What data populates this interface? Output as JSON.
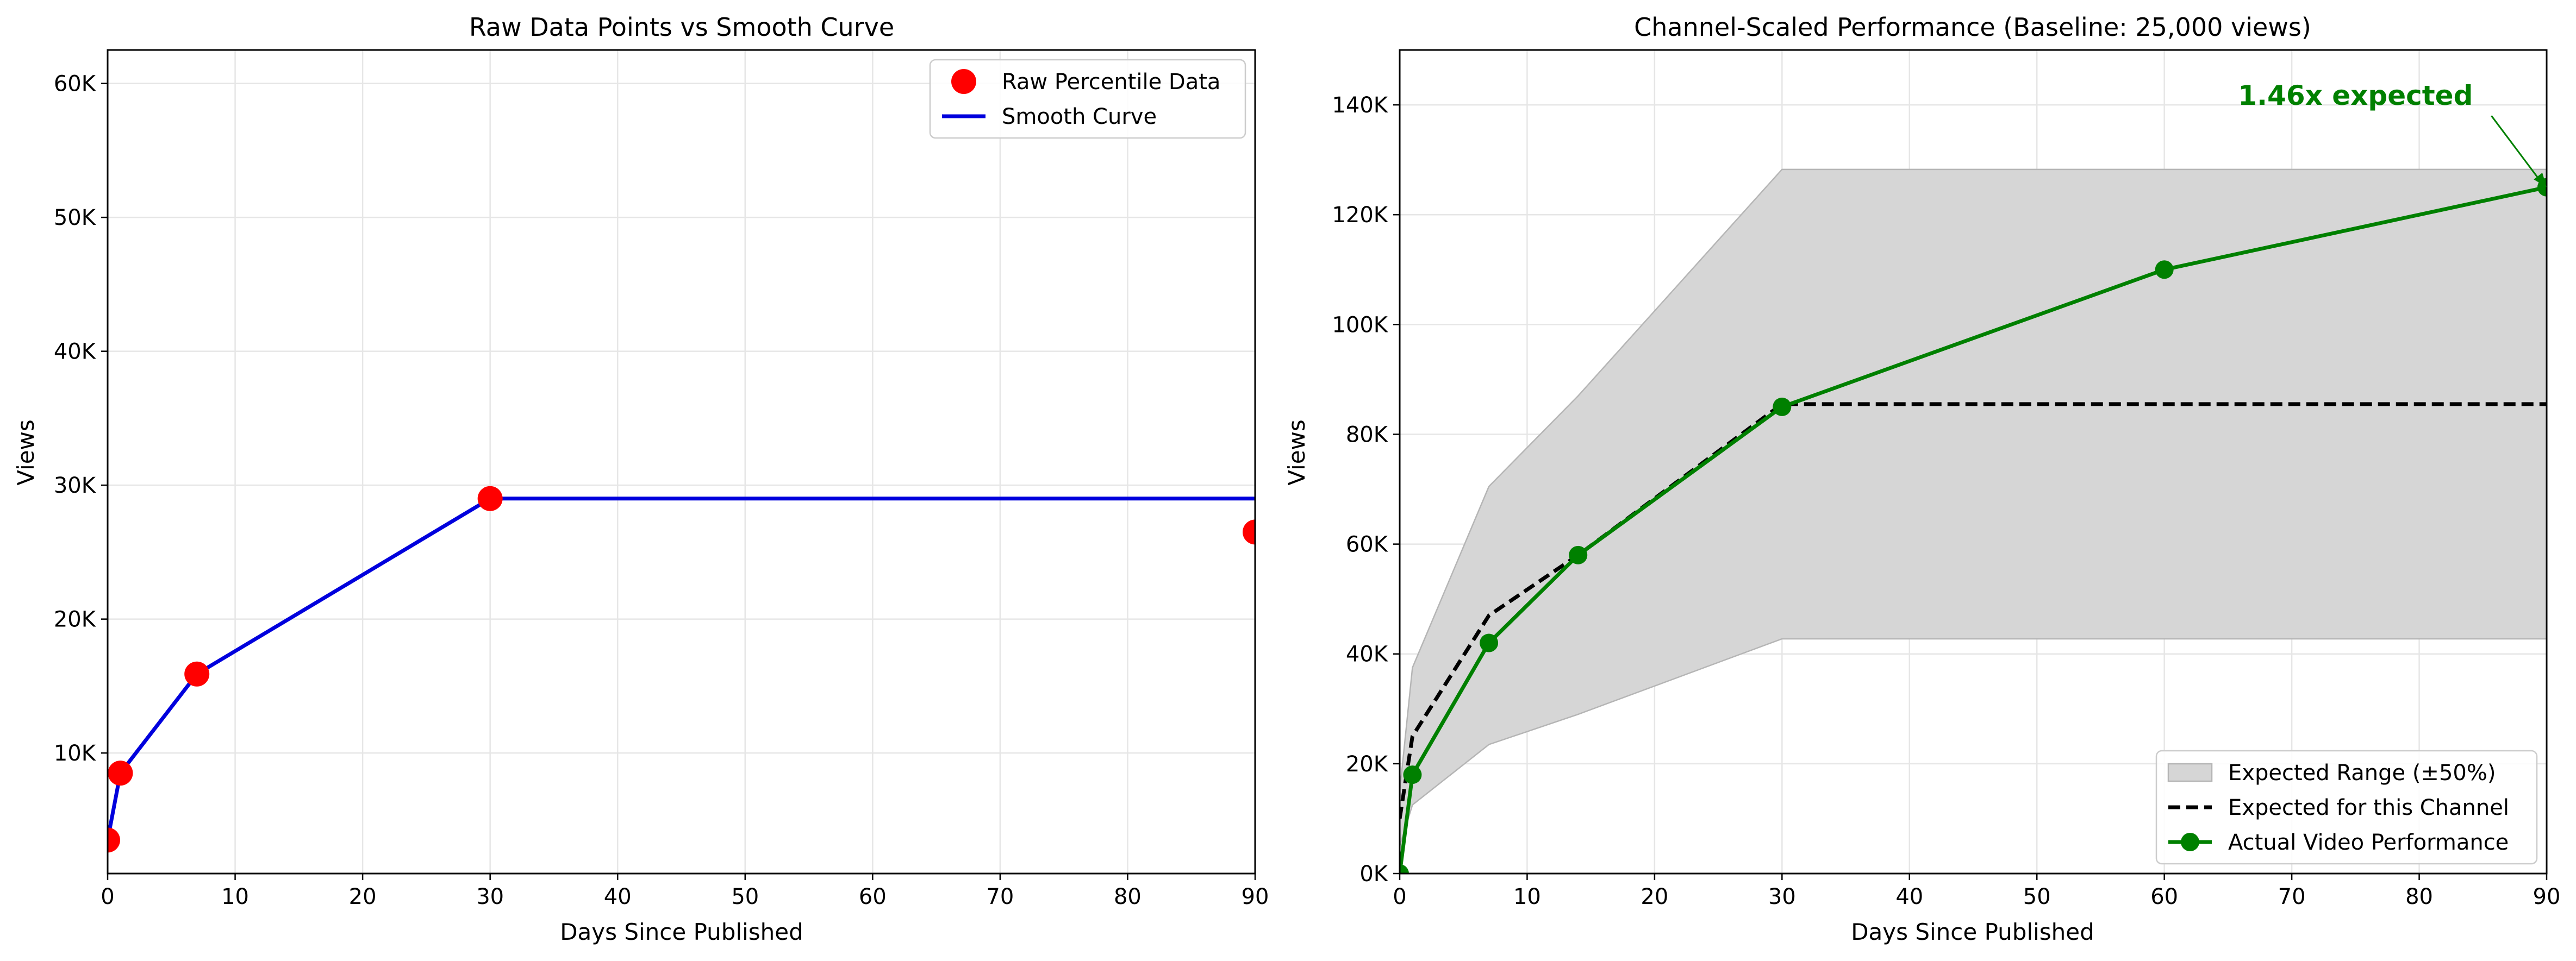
{
  "chart_data": [
    {
      "type": "line",
      "title": "Raw Data Points vs Smooth Curve",
      "xlabel": "Days Since Published",
      "ylabel": "Views",
      "xlim": [
        0,
        90
      ],
      "ylim": [
        1000,
        62500
      ],
      "x_ticks": [
        0,
        10,
        20,
        30,
        40,
        50,
        60,
        70,
        80,
        90
      ],
      "x_tick_labels": [
        "0",
        "10",
        "20",
        "30",
        "40",
        "50",
        "60",
        "70",
        "80",
        "90"
      ],
      "y_ticks": [
        10000,
        20000,
        30000,
        40000,
        50000,
        60000
      ],
      "y_tick_labels": [
        "10K",
        "20K",
        "30K",
        "40K",
        "50K",
        "60K"
      ],
      "grid": true,
      "legend_position": "top-right",
      "series": [
        {
          "name": "Raw Percentile Data",
          "kind": "scatter",
          "color": "#ff0000",
          "points": [
            [
              0,
              3500
            ],
            [
              1,
              8500
            ],
            [
              7,
              15900
            ],
            [
              30,
              29000
            ],
            [
              90,
              26500
            ]
          ]
        },
        {
          "name": "Smooth Curve",
          "kind": "line",
          "color": "#0000dd",
          "points": [
            [
              0,
              3500
            ],
            [
              1,
              8500
            ],
            [
              7,
              15900
            ],
            [
              30,
              29000
            ],
            [
              90,
              29000
            ]
          ]
        }
      ]
    },
    {
      "type": "line",
      "title": "Channel-Scaled Performance (Baseline: 25,000 views)",
      "xlabel": "Days Since Published",
      "ylabel": "Views",
      "xlim": [
        0,
        90
      ],
      "ylim": [
        0,
        150000
      ],
      "x_ticks": [
        0,
        10,
        20,
        30,
        40,
        50,
        60,
        70,
        80,
        90
      ],
      "x_tick_labels": [
        "0",
        "10",
        "20",
        "30",
        "40",
        "50",
        "60",
        "70",
        "80",
        "90"
      ],
      "y_ticks": [
        0,
        20000,
        40000,
        60000,
        80000,
        100000,
        120000,
        140000
      ],
      "y_tick_labels": [
        "0K",
        "20K",
        "40K",
        "60K",
        "80K",
        "100K",
        "120K",
        "140K"
      ],
      "grid": true,
      "legend_position": "bottom-right",
      "series": [
        {
          "name": "Expected Range (±50%)",
          "kind": "band",
          "color": "#bbbbbb",
          "x": [
            0,
            1,
            7,
            14,
            30,
            90
          ],
          "lower": [
            5000,
            12500,
            23500,
            29000,
            42750,
            42750
          ],
          "upper": [
            15000,
            37500,
            70500,
            87000,
            128250,
            128250
          ]
        },
        {
          "name": "Expected for this Channel",
          "kind": "dashed-line",
          "color": "#000000",
          "points": [
            [
              0,
              10000
            ],
            [
              1,
              25000
            ],
            [
              7,
              47000
            ],
            [
              14,
              58000
            ],
            [
              30,
              85500
            ],
            [
              90,
              85500
            ]
          ]
        },
        {
          "name": "Actual Video Performance",
          "kind": "line-marker",
          "color": "#008000",
          "points": [
            [
              0,
              0
            ],
            [
              1,
              18000
            ],
            [
              7,
              42000
            ],
            [
              14,
              58000
            ],
            [
              30,
              85000
            ],
            [
              60,
              110000
            ],
            [
              90,
              125000
            ]
          ]
        }
      ],
      "annotation": {
        "text": "1.46x expected",
        "color": "#008000",
        "text_at": [
          75,
          140000
        ],
        "arrow_to": [
          90,
          125000
        ]
      }
    }
  ]
}
